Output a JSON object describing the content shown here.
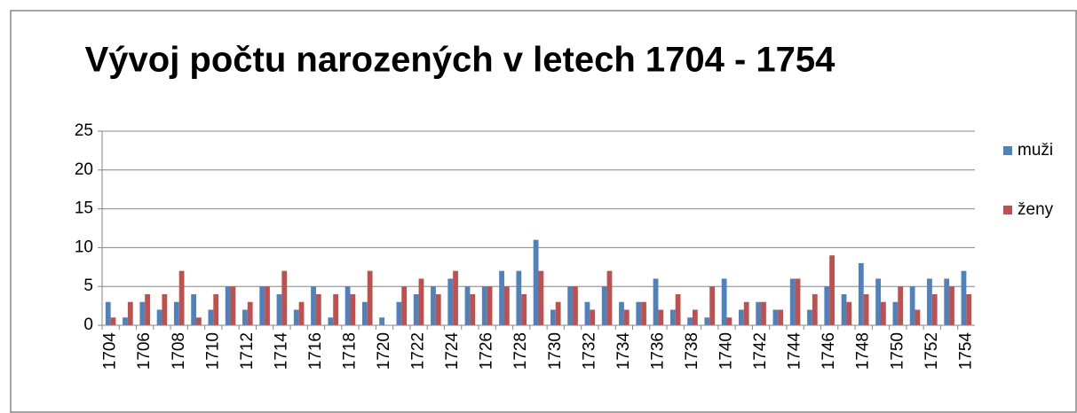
{
  "chart_data": {
    "type": "bar",
    "title": "Vývoj počtu narozených v letech 1704 - 1754",
    "categories": [
      "1704",
      null,
      "1706",
      null,
      "1708",
      null,
      "1710",
      null,
      "1712",
      null,
      "1714",
      null,
      "1716",
      null,
      "1718",
      null,
      "1720",
      null,
      "1722",
      null,
      "1724",
      null,
      "1726",
      null,
      "1728",
      null,
      "1730",
      null,
      "1732",
      null,
      "1734",
      null,
      "1736",
      null,
      "1738",
      null,
      "1740",
      null,
      "1742",
      null,
      "1744",
      null,
      "1746",
      null,
      "1748",
      null,
      "1750",
      null,
      "1752",
      null,
      "1754"
    ],
    "series": [
      {
        "name": "muži",
        "color": "#4f81bd",
        "values": [
          3,
          1,
          3,
          2,
          3,
          4,
          2,
          5,
          2,
          5,
          4,
          2,
          5,
          1,
          5,
          3,
          1,
          3,
          4,
          5,
          6,
          5,
          5,
          7,
          7,
          11,
          2,
          5,
          3,
          5,
          3,
          3,
          6,
          2,
          1,
          1,
          6,
          2,
          3,
          2,
          6,
          2,
          5,
          4,
          8,
          6,
          3,
          5,
          6,
          6,
          7
        ]
      },
      {
        "name": "ženy",
        "color": "#c0504d",
        "values": [
          1,
          3,
          4,
          4,
          7,
          1,
          4,
          5,
          3,
          5,
          7,
          3,
          4,
          4,
          4,
          7,
          0,
          5,
          6,
          4,
          7,
          4,
          5,
          5,
          4,
          7,
          3,
          5,
          2,
          7,
          2,
          3,
          2,
          4,
          2,
          5,
          1,
          3,
          3,
          2,
          6,
          4,
          9,
          3,
          4,
          3,
          5,
          2,
          4,
          5,
          4
        ]
      }
    ],
    "ylim": [
      0,
      25
    ],
    "yticks": [
      0,
      5,
      10,
      15,
      20,
      25
    ],
    "grid": true,
    "legend": "right"
  }
}
